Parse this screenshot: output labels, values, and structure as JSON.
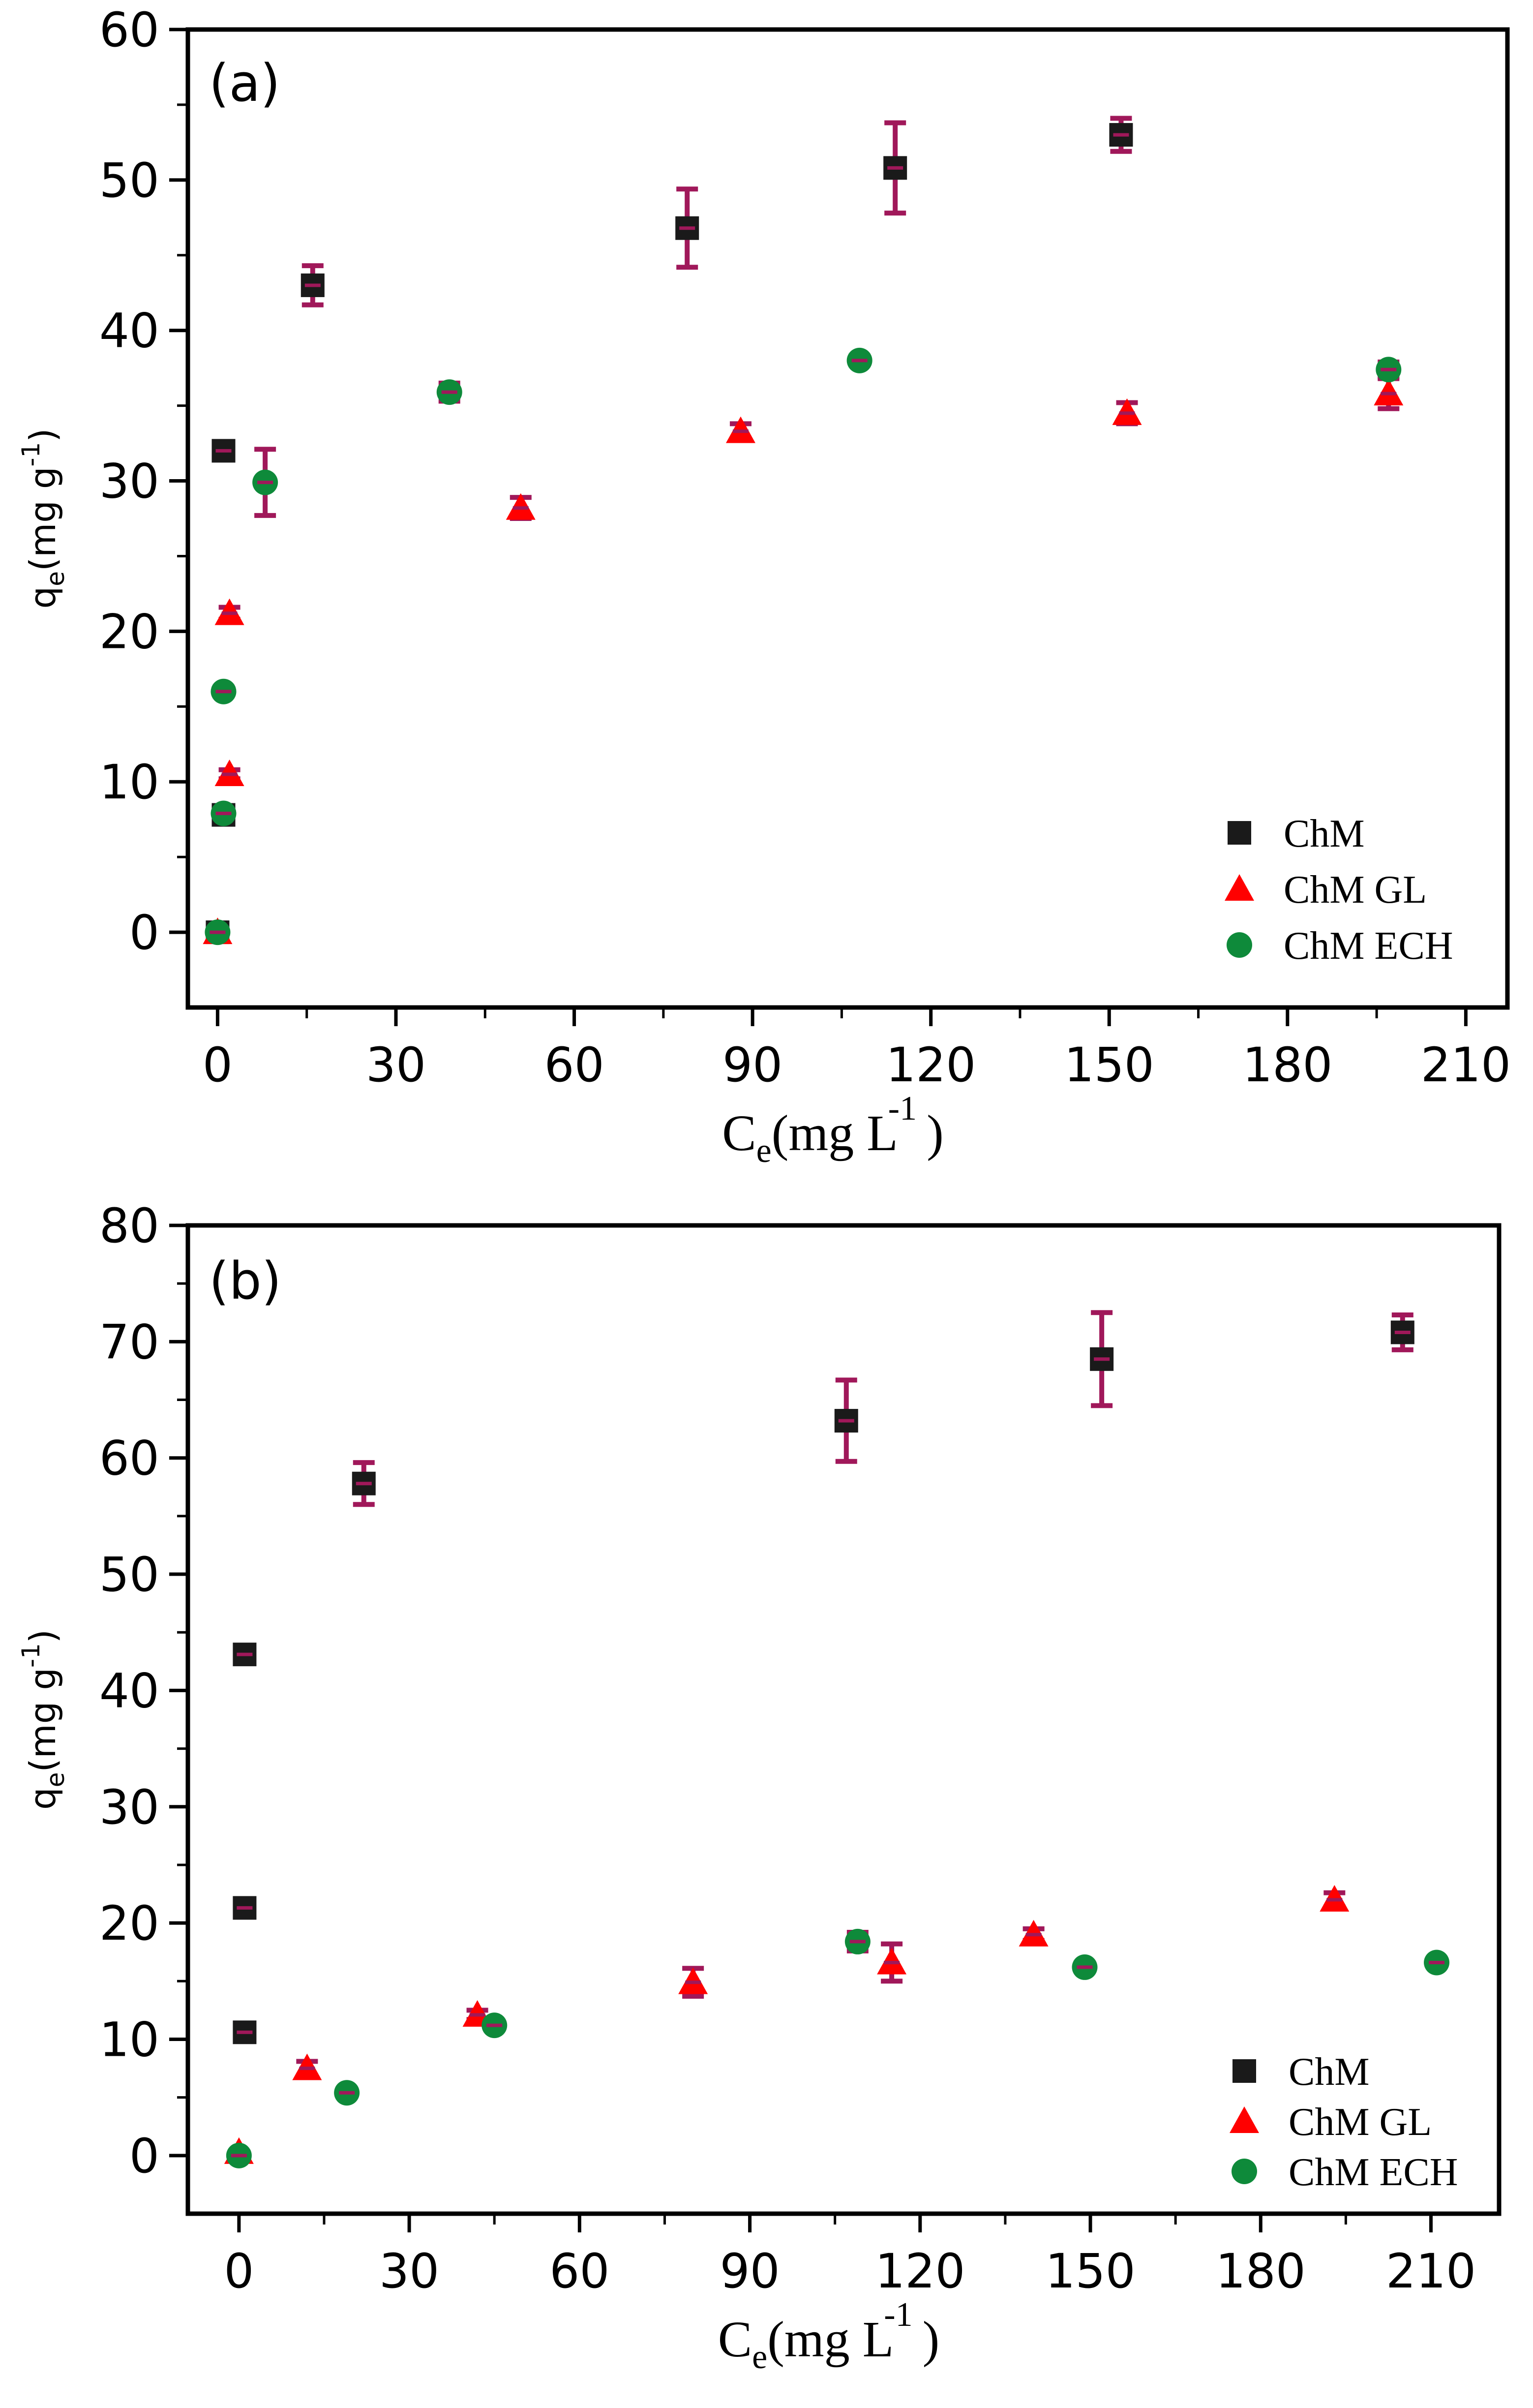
{
  "colors": {
    "ChM": "#1a1a1a",
    "ChM GL": "#ff0000",
    "ChM ECH": "#0e8a3a",
    "errorbar": "#a0185a",
    "cross": "#a0185a"
  },
  "chart_data": [
    {
      "panel": "(a)",
      "type": "scatter",
      "xlabel": {
        "main": "C",
        "sub": "e",
        "unit": "(mg L",
        "sup": "-1",
        "close": ")"
      },
      "ylabel": {
        "main": "q",
        "sub": "e",
        "unit": "(mg g",
        "sup": "-1",
        "close": ")"
      },
      "xlim": [
        -5,
        217
      ],
      "ylim": [
        -5,
        60
      ],
      "xticks": [
        0,
        30,
        60,
        90,
        120,
        150,
        180,
        210
      ],
      "xtick_labels": [
        "0",
        "30",
        "60",
        "90",
        "120",
        "150",
        "180",
        "210"
      ],
      "yticks": [
        0,
        10,
        20,
        30,
        40,
        50,
        60
      ],
      "ytick_labels": [
        "0",
        "10",
        "20",
        "30",
        "40",
        "50",
        "60"
      ],
      "legend_position": "bottom-right",
      "series": [
        {
          "name": "ChM",
          "marker": "square",
          "x": [
            0,
            1,
            1,
            16,
            79,
            114,
            152
          ],
          "y": [
            0,
            7.8,
            32,
            43,
            46.8,
            50.8,
            53
          ],
          "err": [
            0,
            0,
            0.5,
            1.3,
            2.6,
            3.0,
            1.1
          ]
        },
        {
          "name": "ChM GL",
          "marker": "triangle",
          "x": [
            0,
            2,
            2,
            51,
            88,
            153,
            197
          ],
          "y": [
            0,
            10.5,
            21.2,
            28.2,
            33.3,
            34.5,
            35.8
          ],
          "err": [
            0,
            0.3,
            0.4,
            0.7,
            0.5,
            0.7,
            1.0
          ]
        },
        {
          "name": "ChM ECH",
          "marker": "circle",
          "x": [
            0,
            1,
            1,
            8,
            39,
            108,
            197
          ],
          "y": [
            0,
            7.9,
            16,
            29.9,
            35.9,
            38,
            37.4
          ],
          "err": [
            0,
            0.2,
            0.3,
            2.2,
            0.6,
            0.3,
            0.5
          ]
        }
      ]
    },
    {
      "panel": "(b)",
      "type": "scatter",
      "xlabel": {
        "main": "C",
        "sub": "e",
        "unit": "(mg L",
        "sup": "-1",
        "close": ")"
      },
      "ylabel": {
        "main": "q",
        "sub": "e",
        "unit": "(mg g",
        "sup": "-1",
        "close": ")"
      },
      "xlim": [
        -9,
        222
      ],
      "ylim": [
        -5,
        80
      ],
      "xticks": [
        0,
        30,
        60,
        90,
        120,
        150,
        180,
        210
      ],
      "xtick_labels": [
        "0",
        "30",
        "60",
        "90",
        "120",
        "150",
        "180",
        "210"
      ],
      "yticks": [
        0,
        10,
        20,
        30,
        40,
        50,
        60,
        70,
        80
      ],
      "ytick_labels": [
        "0",
        "10",
        "20",
        "30",
        "40",
        "50",
        "60",
        "70",
        "80"
      ],
      "legend_position": "bottom-right",
      "series": [
        {
          "name": "ChM",
          "marker": "square",
          "x": [
            1,
            1,
            1,
            22,
            107,
            152,
            205
          ],
          "y": [
            10.6,
            21.3,
            43.1,
            57.8,
            63.2,
            68.5,
            70.8
          ],
          "err": [
            0,
            0.5,
            0.5,
            1.8,
            3.5,
            4.0,
            1.5
          ]
        },
        {
          "name": "ChM GL",
          "marker": "triangle",
          "x": [
            0,
            12,
            42,
            80,
            115,
            140,
            193
          ],
          "y": [
            0.3,
            7.5,
            12.1,
            14.9,
            16.6,
            19.0,
            22.0
          ],
          "err": [
            0,
            0.6,
            0.4,
            1.2,
            1.6,
            0.5,
            0.6
          ]
        },
        {
          "name": "ChM ECH",
          "marker": "circle",
          "x": [
            0,
            19,
            45,
            109,
            149,
            211
          ],
          "y": [
            0,
            5.4,
            11.2,
            18.4,
            16.2,
            16.6
          ],
          "err": [
            0,
            0.2,
            0.3,
            0.8,
            0.3,
            0.3
          ]
        }
      ]
    }
  ]
}
